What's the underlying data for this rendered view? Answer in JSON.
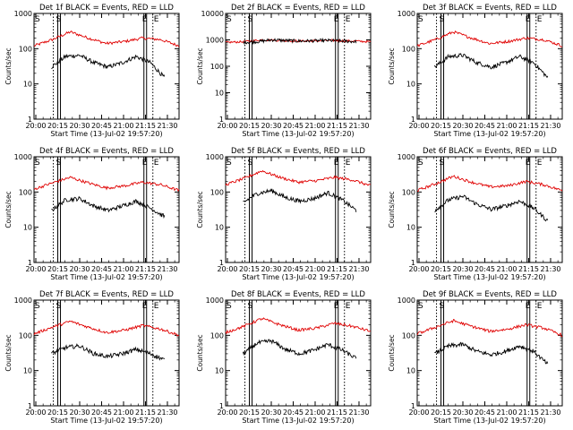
{
  "chart_data": [
    {
      "type": "line",
      "detector": "1f",
      "title": "Det 1f BLACK = Events, RED = LLD",
      "xlabel": "Start Time (13-Jul-02 19:57:20)",
      "ylabel": "Counts/sec",
      "yscale": "log",
      "ylim": [
        1,
        1000
      ],
      "yticks": [
        "1",
        "10",
        "100",
        "1000"
      ],
      "xticks": [
        "20:00",
        "20:15",
        "20:30",
        "20:45",
        "21:00",
        "21:15",
        "21:30"
      ],
      "markers": {
        "start": "S",
        "end": "E"
      },
      "series": [
        {
          "name": "LLD",
          "color": "#e00000",
          "values": [
            120,
            180,
            300,
            200,
            140,
            160,
            200,
            180,
            120
          ]
        },
        {
          "name": "Events",
          "color": "#000000",
          "values": [
            30,
            60,
            65,
            40,
            30,
            40,
            60,
            40,
            15
          ]
        }
      ]
    },
    {
      "type": "line",
      "detector": "2f",
      "title": "Det 2f BLACK = Events, RED = LLD",
      "xlabel": "Start Time (13-Jul-02 19:57:20)",
      "ylabel": "Counts/sec",
      "yscale": "log",
      "ylim": [
        1,
        10000
      ],
      "yticks": [
        "1",
        "10",
        "100",
        "1000",
        "10000"
      ],
      "xticks": [
        "20:00",
        "20:15",
        "20:30",
        "20:45",
        "21:00",
        "21:15",
        "21:30"
      ],
      "markers": {
        "start": "S",
        "end": "E"
      },
      "series": [
        {
          "name": "LLD",
          "color": "#e00000",
          "values": [
            800,
            850,
            1000,
            950,
            900,
            920,
            950,
            900,
            850
          ]
        },
        {
          "name": "Events",
          "color": "#000000",
          "values": [
            800,
            850,
            1000,
            950,
            900,
            920,
            950,
            900,
            850
          ]
        }
      ]
    },
    {
      "type": "line",
      "detector": "3f",
      "title": "Det 3f BLACK = Events, RED = LLD",
      "xlabel": "Start Time (13-Jul-02 19:57:20)",
      "ylabel": "Counts/sec",
      "yscale": "log",
      "ylim": [
        1,
        1000
      ],
      "yticks": [
        "1",
        "10",
        "100",
        "1000"
      ],
      "xticks": [
        "20:00",
        "20:15",
        "20:30",
        "20:45",
        "21:00",
        "21:15",
        "21:30"
      ],
      "markers": {
        "start": "S",
        "end": "E"
      },
      "series": [
        {
          "name": "LLD",
          "color": "#e00000",
          "values": [
            120,
            180,
            300,
            200,
            140,
            160,
            200,
            180,
            120
          ]
        },
        {
          "name": "Events",
          "color": "#000000",
          "values": [
            30,
            60,
            65,
            40,
            30,
            40,
            60,
            40,
            15
          ]
        }
      ]
    },
    {
      "type": "line",
      "detector": "4f",
      "title": "Det 4f BLACK = Events, RED = LLD",
      "xlabel": "Start Time (13-Jul-02 19:57:20)",
      "ylabel": "Counts/sec",
      "yscale": "log",
      "ylim": [
        1,
        1000
      ],
      "yticks": [
        "1",
        "10",
        "100",
        "1000"
      ],
      "xticks": [
        "20:00",
        "20:15",
        "20:30",
        "20:45",
        "21:00",
        "21:15",
        "21:30"
      ],
      "markers": {
        "start": "S",
        "end": "E"
      },
      "series": [
        {
          "name": "LLD",
          "color": "#e00000",
          "values": [
            120,
            180,
            260,
            180,
            130,
            150,
            190,
            160,
            110
          ]
        },
        {
          "name": "Events",
          "color": "#000000",
          "values": [
            30,
            60,
            65,
            40,
            30,
            40,
            55,
            35,
            20
          ]
        }
      ]
    },
    {
      "type": "line",
      "detector": "5f",
      "title": "Det 5f BLACK = Events, RED = LLD",
      "xlabel": "Start Time (13-Jul-02 19:57:20)",
      "ylabel": "Counts/sec",
      "yscale": "log",
      "ylim": [
        1,
        1000
      ],
      "yticks": [
        "1",
        "10",
        "100",
        "1000"
      ],
      "xticks": [
        "20:00",
        "20:15",
        "20:30",
        "20:45",
        "21:00",
        "21:15",
        "21:30"
      ],
      "markers": {
        "start": "S",
        "end": "E"
      },
      "series": [
        {
          "name": "LLD",
          "color": "#e00000",
          "values": [
            160,
            240,
            400,
            260,
            190,
            210,
            260,
            220,
            150
          ]
        },
        {
          "name": "Events",
          "color": "#000000",
          "values": [
            50,
            90,
            110,
            70,
            55,
            65,
            95,
            60,
            30
          ]
        }
      ]
    },
    {
      "type": "line",
      "detector": "6f",
      "title": "Det 6f BLACK = Events, RED = LLD",
      "xlabel": "Start Time (13-Jul-02 19:57:20)",
      "ylabel": "Counts/sec",
      "yscale": "log",
      "ylim": [
        1,
        1000
      ],
      "yticks": [
        "1",
        "10",
        "100",
        "1000"
      ],
      "xticks": [
        "20:00",
        "20:15",
        "20:30",
        "20:45",
        "21:00",
        "21:15",
        "21:30"
      ],
      "markers": {
        "start": "S",
        "end": "E"
      },
      "series": [
        {
          "name": "LLD",
          "color": "#e00000",
          "values": [
            110,
            170,
            280,
            190,
            140,
            150,
            200,
            160,
            110
          ]
        },
        {
          "name": "Events",
          "color": "#000000",
          "values": [
            30,
            60,
            75,
            45,
            32,
            40,
            55,
            35,
            15
          ]
        }
      ]
    },
    {
      "type": "line",
      "detector": "7f",
      "title": "Det 7f BLACK = Events, RED = LLD",
      "xlabel": "Start Time (13-Jul-02 19:57:20)",
      "ylabel": "Counts/sec",
      "yscale": "log",
      "ylim": [
        1,
        1000
      ],
      "yticks": [
        "1",
        "10",
        "100",
        "1000"
      ],
      "xticks": [
        "20:00",
        "20:15",
        "20:30",
        "20:45",
        "21:00",
        "21:15",
        "21:30"
      ],
      "markers": {
        "start": "S",
        "end": "E"
      },
      "series": [
        {
          "name": "LLD",
          "color": "#e00000",
          "values": [
            110,
            170,
            250,
            170,
            120,
            140,
            190,
            150,
            100
          ]
        },
        {
          "name": "Events",
          "color": "#000000",
          "values": [
            30,
            45,
            50,
            30,
            25,
            30,
            40,
            30,
            20
          ]
        }
      ]
    },
    {
      "type": "line",
      "detector": "8f",
      "title": "Det 8f BLACK = Events, RED = LLD",
      "xlabel": "Start Time (13-Jul-02 19:57:20)",
      "ylabel": "Counts/sec",
      "yscale": "log",
      "ylim": [
        1,
        1000
      ],
      "yticks": [
        "1",
        "10",
        "100",
        "1000"
      ],
      "xticks": [
        "20:00",
        "20:15",
        "20:30",
        "20:45",
        "21:00",
        "21:15",
        "21:30"
      ],
      "markers": {
        "start": "S",
        "end": "E"
      },
      "series": [
        {
          "name": "LLD",
          "color": "#e00000",
          "values": [
            120,
            180,
            300,
            200,
            140,
            160,
            220,
            180,
            130
          ]
        },
        {
          "name": "Events",
          "color": "#000000",
          "values": [
            30,
            60,
            70,
            40,
            30,
            38,
            55,
            38,
            22
          ]
        }
      ]
    },
    {
      "type": "line",
      "detector": "9f",
      "title": "Det 9f BLACK = Events, RED = LLD",
      "xlabel": "Start Time (13-Jul-02 19:57:20)",
      "ylabel": "Counts/sec",
      "yscale": "log",
      "ylim": [
        1,
        1000
      ],
      "yticks": [
        "1",
        "10",
        "100",
        "1000"
      ],
      "xticks": [
        "20:00",
        "20:15",
        "20:30",
        "20:45",
        "21:00",
        "21:15",
        "21:30"
      ],
      "markers": {
        "start": "S",
        "end": "E"
      },
      "series": [
        {
          "name": "LLD",
          "color": "#e00000",
          "values": [
            110,
            170,
            260,
            180,
            130,
            150,
            200,
            160,
            100
          ]
        },
        {
          "name": "Events",
          "color": "#000000",
          "values": [
            30,
            50,
            55,
            35,
            28,
            35,
            50,
            35,
            15
          ]
        }
      ]
    }
  ]
}
